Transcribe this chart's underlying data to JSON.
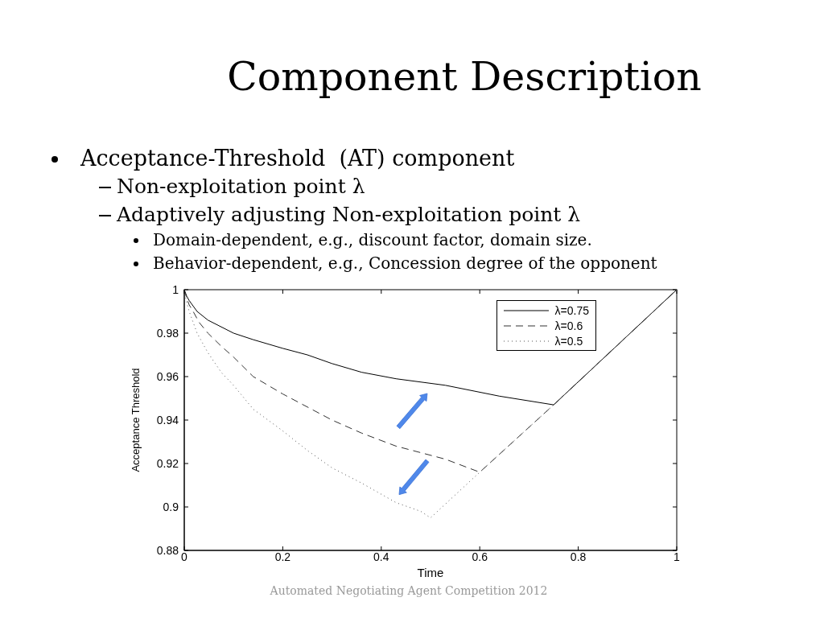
{
  "chart_data": {
    "type": "line",
    "title": "Component Description",
    "annotations": [
      "Acceptance-Threshold  (AT) component",
      "Non-exploitation point λ",
      "Adaptively adjusting Non-exploitation point λ",
      "Domain-dependent, e.g., discount factor, domain size.",
      "Behavior-dependent, e.g., Concession degree of the opponent",
      "Automated Negotiating Agent Competition 2012"
    ],
    "xlabel": "Time",
    "ylabel": "Acceptance Threshold",
    "xlim": [
      0,
      1
    ],
    "xticks": [
      0,
      0.2,
      0.4,
      0.6,
      0.8,
      1
    ],
    "ylim": [
      0.88,
      1
    ],
    "yticks": [
      0.88,
      0.9,
      0.92,
      0.94,
      0.96,
      0.98,
      1
    ],
    "grid": false,
    "legend": "top right",
    "series": [
      {
        "name": "λ=0.75",
        "color": "#000000",
        "line_style": "solid",
        "x": [
          0,
          0.005,
          0.01,
          0.026,
          0.048,
          0.1,
          0.14,
          0.2,
          0.25,
          0.3,
          0.36,
          0.43,
          0.53,
          0.64,
          0.75,
          1
        ],
        "values": [
          1,
          0.997,
          0.995,
          0.99,
          0.986,
          0.98,
          0.977,
          0.973,
          0.97,
          0.966,
          0.962,
          0.959,
          0.956,
          0.951,
          0.947,
          1
        ]
      },
      {
        "name": "λ=0.6",
        "color": "#333333",
        "line_style": "dashed",
        "x": [
          0,
          0.005,
          0.01,
          0.018,
          0.03,
          0.048,
          0.075,
          0.1,
          0.14,
          0.2,
          0.25,
          0.3,
          0.36,
          0.43,
          0.53,
          0.6,
          0.75,
          1
        ],
        "values": [
          1,
          0.996,
          0.993,
          0.99,
          0.985,
          0.98,
          0.974,
          0.969,
          0.96,
          0.952,
          0.946,
          0.94,
          0.934,
          0.928,
          0.922,
          0.916,
          0.947,
          1
        ]
      },
      {
        "name": "λ=0.5",
        "color": "#555555",
        "line_style": "dotted",
        "x": [
          0,
          0.005,
          0.01,
          0.026,
          0.048,
          0.075,
          0.1,
          0.14,
          0.2,
          0.25,
          0.3,
          0.36,
          0.43,
          0.48,
          0.5,
          0.6,
          0.75,
          1
        ],
        "values": [
          1,
          0.994,
          0.99,
          0.98,
          0.971,
          0.962,
          0.956,
          0.945,
          0.935,
          0.926,
          0.918,
          0.911,
          0.902,
          0.898,
          0.895,
          0.916,
          0.947,
          1
        ]
      }
    ]
  }
}
